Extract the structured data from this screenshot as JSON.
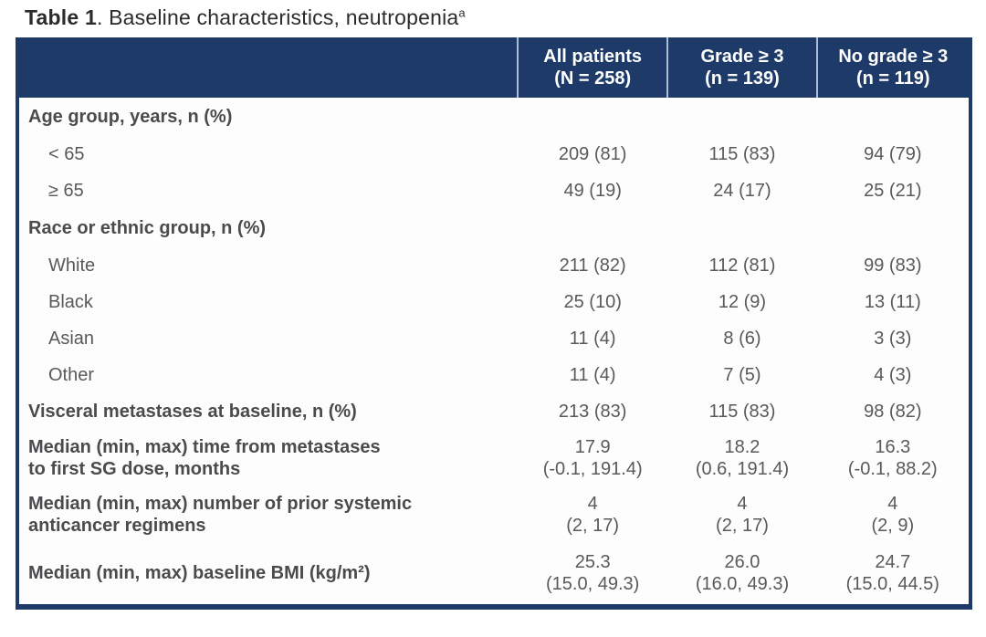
{
  "page": {
    "title": {
      "bold": "Table 1",
      "rest": ". Baseline characteristics, neutropenia",
      "superscript": "a"
    }
  },
  "colors": {
    "header_bg": "#1e3a69",
    "table_border": "#1e3a69",
    "header_divider": "#a9bdd6",
    "header_text": "#ffffff",
    "body_text": "#58595b"
  },
  "table": {
    "header": {
      "row_label_column": "",
      "columns": [
        "All patients\n(N = 258)",
        "Grade ≥ 3\n(n = 139)",
        "No grade ≥ 3\n(n = 119)"
      ]
    },
    "rows": [
      {
        "type": "category",
        "cells": [
          "Age group, years, n (%)",
          "",
          "",
          ""
        ]
      },
      {
        "type": "sub",
        "cells": [
          "< 65",
          "209 (81)",
          "115 (83)",
          "94 (79)"
        ]
      },
      {
        "type": "sub",
        "cells": [
          "≥ 65",
          "49 (19)",
          "24 (17)",
          "25 (21)"
        ]
      },
      {
        "type": "category",
        "cells": [
          "Race or ethnic group, n (%)",
          "",
          "",
          ""
        ]
      },
      {
        "type": "sub",
        "cells": [
          "White",
          "211 (82)",
          "112 (81)",
          "99 (83)"
        ]
      },
      {
        "type": "sub",
        "cells": [
          "Black",
          "25 (10)",
          "12 (9)",
          "13 (11)"
        ]
      },
      {
        "type": "sub",
        "cells": [
          "Asian",
          "11 (4)",
          "8 (6)",
          "3 (3)"
        ]
      },
      {
        "type": "sub",
        "cells": [
          "Other",
          "11 (4)",
          "7 (5)",
          "4 (3)"
        ]
      },
      {
        "type": "boldrow",
        "cells": [
          "Visceral metastases at baseline, n (%)",
          "213 (83)",
          "115 (83)",
          "98 (82)"
        ]
      },
      {
        "type": "boldrow",
        "cells": [
          "Median (min, max) time from metastases\nto first SG dose, months",
          "17.9\n(-0.1, 191.4)",
          "18.2\n(0.6, 191.4)",
          "16.3\n(-0.1, 88.2)"
        ]
      },
      {
        "type": "boldrow",
        "cells": [
          "Median (min, max) number of prior systemic\nanticancer regimens",
          "4\n(2, 17)",
          "4\n(2, 17)",
          "4\n(2, 9)"
        ]
      },
      {
        "type": "boldrow",
        "cells": [
          "Median (min, max) baseline BMI (kg/m²)",
          "25.3\n(15.0, 49.3)",
          "26.0\n(16.0, 49.3)",
          "24.7\n(15.0, 44.5)"
        ]
      }
    ]
  }
}
